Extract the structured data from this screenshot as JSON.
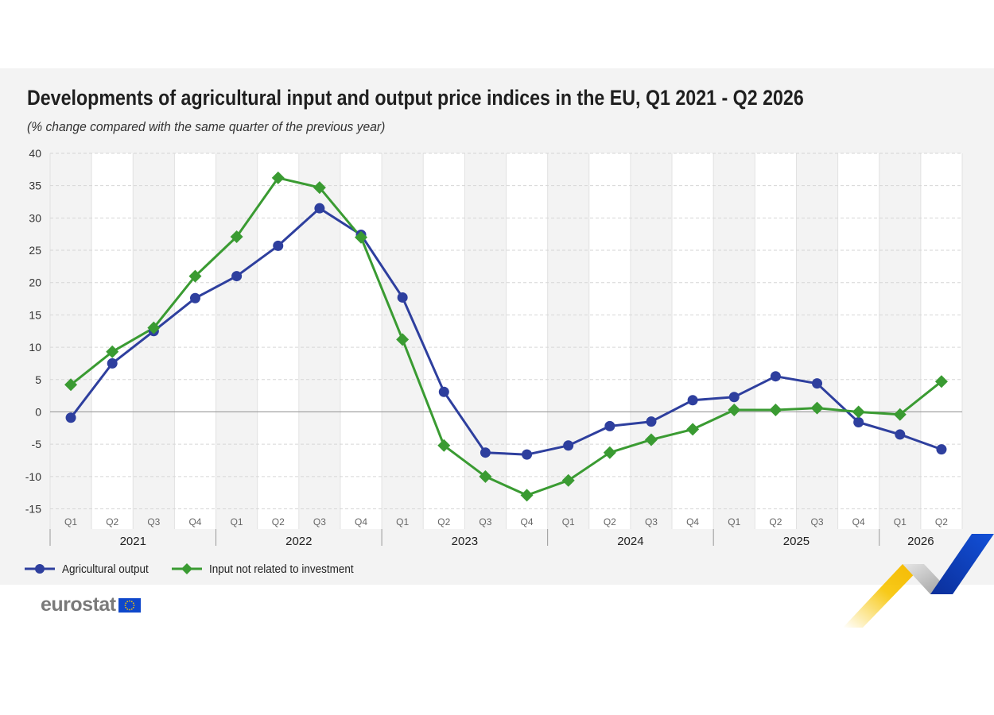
{
  "header": {
    "title": "Developments of agricultural input and output price indices in the EU, Q1 2021 - Q2 2026",
    "subtitle": "(% change compared with the same quarter of the previous year)"
  },
  "legend": {
    "output_label": "Agricultural output",
    "input_label": "Input not related to investment"
  },
  "logo": {
    "text": "eurostat",
    "flag_icon": "eu-flag-icon"
  },
  "colors": {
    "output": "#2e3f9e",
    "input": "#3a9b32",
    "panel": "#f3f3f3",
    "band": "#ffffff",
    "accent_yellow": "#f7c400",
    "accent_blue": "#0e47cb"
  },
  "chart_data": {
    "type": "line",
    "title": "Developments of agricultural input and output price indices in the EU, Q1 2021 - Q2 2026",
    "subtitle": "(% change compared with the same quarter of the previous year)",
    "xlabel": "",
    "ylabel": "",
    "ylim": [
      -15,
      40
    ],
    "yticks": [
      40,
      35,
      30,
      25,
      20,
      15,
      10,
      5,
      0,
      -5,
      -10,
      -15
    ],
    "grid": true,
    "legend_position": "bottom-left",
    "categories": [
      "Q1",
      "Q2",
      "Q3",
      "Q4",
      "Q1",
      "Q2",
      "Q3",
      "Q4",
      "Q1",
      "Q2",
      "Q3",
      "Q4",
      "Q1",
      "Q2",
      "Q3",
      "Q4",
      "Q1",
      "Q2",
      "Q3",
      "Q4",
      "Q1",
      "Q2"
    ],
    "years": [
      {
        "label": "2021",
        "quarters": 4
      },
      {
        "label": "2022",
        "quarters": 4
      },
      {
        "label": "2023",
        "quarters": 4
      },
      {
        "label": "2024",
        "quarters": 4
      },
      {
        "label": "2025",
        "quarters": 4
      },
      {
        "label": "2026",
        "quarters": 2
      }
    ],
    "series": [
      {
        "name": "Agricultural output",
        "marker": "circle",
        "values": [
          -0.9,
          7.5,
          12.5,
          17.6,
          21.0,
          25.7,
          31.5,
          27.4,
          17.7,
          3.1,
          -6.3,
          -6.6,
          -5.2,
          -2.2,
          -1.5,
          1.8,
          2.3,
          5.5,
          4.4,
          -1.6,
          -3.5,
          -5.8
        ]
      },
      {
        "name": "Input not related to investment",
        "marker": "diamond",
        "values": [
          4.2,
          9.3,
          13.0,
          21.0,
          27.1,
          36.2,
          34.7,
          27.0,
          11.2,
          -5.2,
          -10.0,
          -12.9,
          -10.6,
          -6.3,
          -4.3,
          -2.7,
          0.3,
          0.3,
          0.6,
          0.0,
          -0.4,
          4.7
        ]
      }
    ]
  }
}
